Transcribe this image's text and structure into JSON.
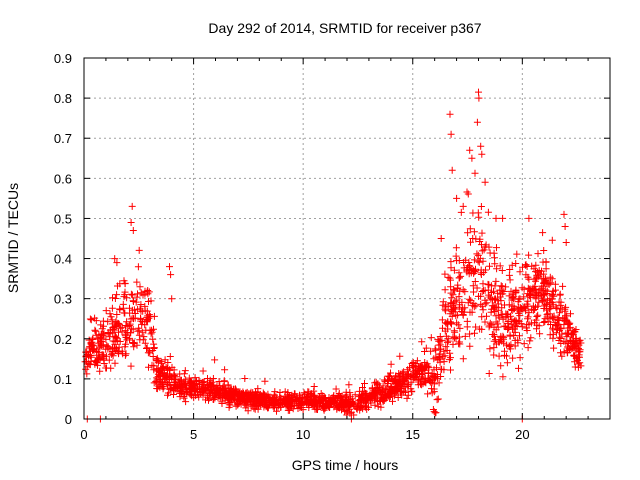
{
  "chart_data": {
    "type": "scatter",
    "title": "Day 292 of 2014, SRMTID for receiver p367",
    "xlabel": "GPS time / hours",
    "ylabel": "SRMTID / TECUs",
    "xlim": [
      0,
      24
    ],
    "ylim": [
      0,
      0.9
    ],
    "x_ticks": [
      0,
      5,
      10,
      15,
      20
    ],
    "x_tick_labels": [
      "0",
      "5",
      "10",
      "15",
      "20"
    ],
    "y_ticks": [
      0,
      0.1,
      0.2,
      0.3,
      0.4,
      0.5,
      0.6,
      0.7,
      0.8,
      0.9
    ],
    "y_tick_labels": [
      "0",
      "0.1",
      "0.2",
      "0.3",
      "0.4",
      "0.5",
      "0.6",
      "0.7",
      "0.8",
      "0.9"
    ],
    "grid": true,
    "marker": "plus",
    "series_color": "#ff0000",
    "envelope": {
      "description": "approximate median trend of SRMTID vs GPS hour",
      "x": [
        0.0,
        0.3,
        0.6,
        1.0,
        1.5,
        2.0,
        2.5,
        3.0,
        3.3,
        3.7,
        4.5,
        5.5,
        6.5,
        7.5,
        8.5,
        9.5,
        10.5,
        11.5,
        12.2,
        13.0,
        14.0,
        14.6,
        15.0,
        15.5,
        16.0,
        16.5,
        17.0,
        17.5,
        18.0,
        18.5,
        19.0,
        19.5,
        20.0,
        20.5,
        21.0,
        21.5,
        22.0,
        22.6
      ],
      "y": [
        0.12,
        0.17,
        0.19,
        0.18,
        0.22,
        0.25,
        0.25,
        0.23,
        0.12,
        0.1,
        0.08,
        0.075,
        0.065,
        0.05,
        0.045,
        0.045,
        0.045,
        0.04,
        0.035,
        0.05,
        0.075,
        0.09,
        0.11,
        0.12,
        0.1,
        0.22,
        0.3,
        0.33,
        0.36,
        0.3,
        0.26,
        0.25,
        0.27,
        0.3,
        0.32,
        0.26,
        0.22,
        0.16
      ]
    },
    "spread": {
      "description": "approximate vertical scatter (+/-) around envelope",
      "x": [
        0.0,
        1.0,
        2.0,
        3.0,
        3.5,
        5.0,
        10.0,
        12.0,
        14.0,
        15.5,
        16.5,
        17.5,
        18.0,
        19.0,
        20.0,
        21.0,
        22.0,
        22.6
      ],
      "y": [
        0.04,
        0.07,
        0.1,
        0.09,
        0.04,
        0.025,
        0.02,
        0.02,
        0.03,
        0.04,
        0.12,
        0.15,
        0.17,
        0.12,
        0.1,
        0.1,
        0.08,
        0.04
      ]
    },
    "outliers": [
      {
        "x": 2.2,
        "y": 0.53
      },
      {
        "x": 2.15,
        "y": 0.49
      },
      {
        "x": 2.25,
        "y": 0.47
      },
      {
        "x": 1.4,
        "y": 0.4
      },
      {
        "x": 1.5,
        "y": 0.39
      },
      {
        "x": 3.9,
        "y": 0.38
      },
      {
        "x": 3.95,
        "y": 0.36
      },
      {
        "x": 4.0,
        "y": 0.3
      },
      {
        "x": 16.7,
        "y": 0.76
      },
      {
        "x": 16.75,
        "y": 0.71
      },
      {
        "x": 16.8,
        "y": 0.62
      },
      {
        "x": 17.6,
        "y": 0.67
      },
      {
        "x": 17.7,
        "y": 0.65
      },
      {
        "x": 18.0,
        "y": 0.815
      },
      {
        "x": 18.02,
        "y": 0.8
      },
      {
        "x": 17.95,
        "y": 0.74
      },
      {
        "x": 18.1,
        "y": 0.68
      },
      {
        "x": 18.15,
        "y": 0.66
      },
      {
        "x": 18.3,
        "y": 0.59
      },
      {
        "x": 19.1,
        "y": 0.5
      },
      {
        "x": 18.8,
        "y": 0.5
      },
      {
        "x": 20.3,
        "y": 0.5
      },
      {
        "x": 21.9,
        "y": 0.51
      },
      {
        "x": 21.95,
        "y": 0.48
      },
      {
        "x": 22.0,
        "y": 0.44
      },
      {
        "x": 16.3,
        "y": 0.45
      },
      {
        "x": 17.0,
        "y": 0.55
      },
      {
        "x": 17.3,
        "y": 0.53
      }
    ],
    "zero_points": [
      {
        "x": 0.15,
        "y": 0.0
      },
      {
        "x": 0.75,
        "y": 0.0
      },
      {
        "x": 12.2,
        "y": 0.0
      },
      {
        "x": 20.0,
        "y": 0.0
      }
    ],
    "x_range_observed": [
      0.05,
      22.7
    ]
  }
}
